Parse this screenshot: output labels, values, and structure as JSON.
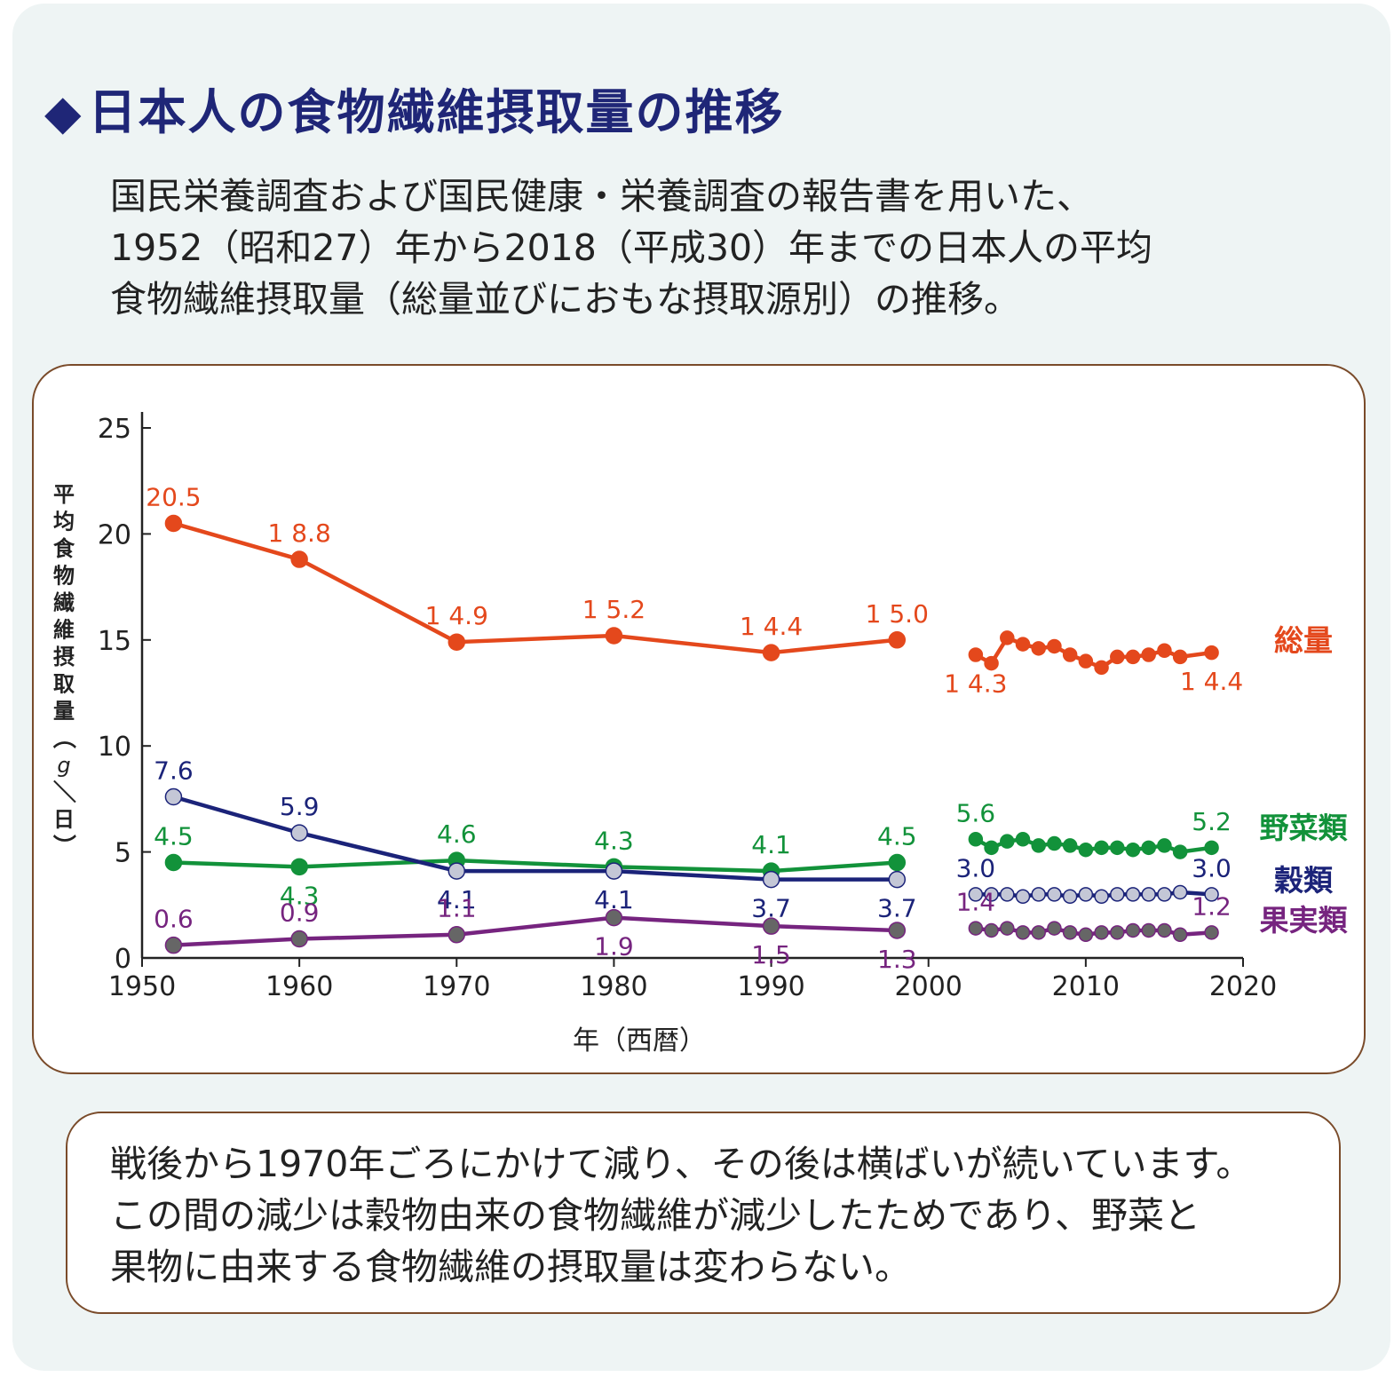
{
  "title": {
    "marker": "◆",
    "text": "日本人の食物繊維摂取量の推移"
  },
  "intro_lines": [
    "国民栄養調査および国民健康・栄養調査の報告書を用いた、",
    "1952（昭和27）年から2018（平成30）年までの日本人の平均",
    "食物繊維摂取量（総量並びにおもな摂取源別）の推移。"
  ],
  "note_lines": [
    "戦後から1970年ごろにかけて減り、その後は横ばいが続いています。",
    "この間の減少は穀物由来の食物繊維が減少したためであり、野菜と",
    "果物に由来する食物繊維の摂取量は変わらない。"
  ],
  "chart_data": {
    "type": "line",
    "xlabel": "年（西暦）",
    "ylabel": "平均食物繊維摂取量（g／日）",
    "xlim": [
      1950,
      2020
    ],
    "ylim": [
      0,
      25
    ],
    "xticks": [
      "1950",
      "1960",
      "1970",
      "1980",
      "1990",
      "2000",
      "2010",
      "2020"
    ],
    "yticks": [
      "0",
      "5",
      "10",
      "15",
      "20",
      "25"
    ],
    "grid": false,
    "legend": "right, labels at line ends",
    "series": [
      {
        "name": "総量",
        "color": "#e4481c",
        "marker_fill": "#e4481c",
        "segments": [
          {
            "x": [
              1952,
              1960,
              1970,
              1980,
              1990,
              1998
            ],
            "y": [
              20.5,
              18.8,
              14.9,
              15.2,
              14.4,
              15.0
            ]
          },
          {
            "x": [
              2003,
              2004,
              2005,
              2006,
              2007,
              2008,
              2009,
              2010,
              2011,
              2012,
              2013,
              2014,
              2015,
              2016,
              2018
            ],
            "y": [
              14.3,
              13.9,
              15.1,
              14.8,
              14.6,
              14.7,
              14.3,
              14.0,
              13.7,
              14.2,
              14.2,
              14.3,
              14.5,
              14.2,
              14.4
            ]
          }
        ],
        "data_labels": [
          {
            "x": 1952,
            "y": 20.5,
            "text": "20.5",
            "pos": "above"
          },
          {
            "x": 1960,
            "y": 18.8,
            "text": "1 8.8",
            "pos": "above"
          },
          {
            "x": 1970,
            "y": 14.9,
            "text": "1 4.9",
            "pos": "above"
          },
          {
            "x": 1980,
            "y": 15.2,
            "text": "1 5.2",
            "pos": "above"
          },
          {
            "x": 1990,
            "y": 14.4,
            "text": "1 4.4",
            "pos": "above"
          },
          {
            "x": 1998,
            "y": 15.0,
            "text": "1 5.0",
            "pos": "above"
          },
          {
            "x": 2003,
            "y": 14.3,
            "text": "1 4.3",
            "pos": "below"
          },
          {
            "x": 2018,
            "y": 14.4,
            "text": "1 4.4",
            "pos": "below"
          }
        ]
      },
      {
        "name": "野菜類",
        "color": "#12923a",
        "marker_fill": "#12923a",
        "segments": [
          {
            "x": [
              1952,
              1960,
              1970,
              1980,
              1990,
              1998
            ],
            "y": [
              4.5,
              4.3,
              4.6,
              4.3,
              4.1,
              4.5
            ]
          },
          {
            "x": [
              2003,
              2004,
              2005,
              2006,
              2007,
              2008,
              2009,
              2010,
              2011,
              2012,
              2013,
              2014,
              2015,
              2016,
              2018
            ],
            "y": [
              5.6,
              5.2,
              5.5,
              5.6,
              5.3,
              5.4,
              5.3,
              5.1,
              5.2,
              5.2,
              5.1,
              5.2,
              5.3,
              5.0,
              5.2
            ]
          }
        ],
        "data_labels": [
          {
            "x": 1952,
            "y": 4.5,
            "text": "4.5",
            "pos": "above"
          },
          {
            "x": 1960,
            "y": 4.3,
            "text": "4.3",
            "pos": "below"
          },
          {
            "x": 1970,
            "y": 4.6,
            "text": "4.6",
            "pos": "above"
          },
          {
            "x": 1980,
            "y": 4.3,
            "text": "4.3",
            "pos": "above"
          },
          {
            "x": 1990,
            "y": 4.1,
            "text": "4.1",
            "pos": "above"
          },
          {
            "x": 1998,
            "y": 4.5,
            "text": "4.5",
            "pos": "above"
          },
          {
            "x": 2003,
            "y": 5.6,
            "text": "5.6",
            "pos": "above"
          },
          {
            "x": 2018,
            "y": 5.2,
            "text": "5.2",
            "pos": "above"
          }
        ]
      },
      {
        "name": "穀類",
        "color": "#1b2379",
        "marker_fill": "#c4c7d6",
        "segments": [
          {
            "x": [
              1952,
              1960,
              1970,
              1980,
              1990,
              1998
            ],
            "y": [
              7.6,
              5.9,
              4.1,
              4.1,
              3.7,
              3.7
            ]
          },
          {
            "x": [
              2003,
              2004,
              2005,
              2006,
              2007,
              2008,
              2009,
              2010,
              2011,
              2012,
              2013,
              2014,
              2015,
              2016,
              2018
            ],
            "y": [
              3.0,
              3.0,
              3.0,
              2.9,
              3.0,
              3.0,
              2.9,
              3.0,
              2.9,
              3.0,
              3.0,
              3.0,
              3.0,
              3.1,
              3.0
            ]
          }
        ],
        "data_labels": [
          {
            "x": 1952,
            "y": 7.6,
            "text": "7.6",
            "pos": "above"
          },
          {
            "x": 1960,
            "y": 5.9,
            "text": "5.9",
            "pos": "above"
          },
          {
            "x": 1970,
            "y": 4.1,
            "text": "4.1",
            "pos": "below"
          },
          {
            "x": 1980,
            "y": 4.1,
            "text": "4.1",
            "pos": "below"
          },
          {
            "x": 1990,
            "y": 3.7,
            "text": "3.7",
            "pos": "below"
          },
          {
            "x": 1998,
            "y": 3.7,
            "text": "3.7",
            "pos": "below"
          },
          {
            "x": 2003,
            "y": 3.0,
            "text": "3.0",
            "pos": "above"
          },
          {
            "x": 2018,
            "y": 3.0,
            "text": "3.0",
            "pos": "above"
          }
        ]
      },
      {
        "name": "果実類",
        "color": "#76247f",
        "marker_fill": "#666666",
        "segments": [
          {
            "x": [
              1952,
              1960,
              1970,
              1980,
              1990,
              1998
            ],
            "y": [
              0.6,
              0.9,
              1.1,
              1.9,
              1.5,
              1.3
            ]
          },
          {
            "x": [
              2003,
              2004,
              2005,
              2006,
              2007,
              2008,
              2009,
              2010,
              2011,
              2012,
              2013,
              2014,
              2015,
              2016,
              2018
            ],
            "y": [
              1.4,
              1.3,
              1.4,
              1.2,
              1.2,
              1.4,
              1.2,
              1.1,
              1.2,
              1.2,
              1.3,
              1.3,
              1.3,
              1.1,
              1.2
            ]
          }
        ],
        "data_labels": [
          {
            "x": 1952,
            "y": 0.6,
            "text": "0.6",
            "pos": "above"
          },
          {
            "x": 1960,
            "y": 0.9,
            "text": "0.9",
            "pos": "above"
          },
          {
            "x": 1970,
            "y": 1.1,
            "text": "1.1",
            "pos": "above"
          },
          {
            "x": 1980,
            "y": 1.9,
            "text": "1.9",
            "pos": "below"
          },
          {
            "x": 1990,
            "y": 1.5,
            "text": "1.5",
            "pos": "below"
          },
          {
            "x": 1998,
            "y": 1.3,
            "text": "1.3",
            "pos": "below"
          },
          {
            "x": 2003,
            "y": 1.4,
            "text": "1.4",
            "pos": "above"
          },
          {
            "x": 2018,
            "y": 1.2,
            "text": "1.2",
            "pos": "above"
          }
        ]
      }
    ]
  }
}
